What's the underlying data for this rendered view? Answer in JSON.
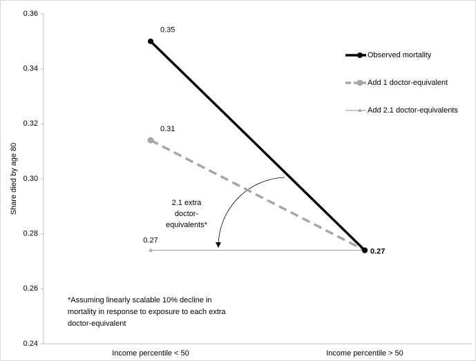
{
  "chart_data": {
    "type": "line",
    "y_label": "Share died by age 80",
    "categories": [
      "Income percentile < 50",
      "Income percentile > 50"
    ],
    "series": [
      {
        "name": "Observed mortality",
        "color": "#000000",
        "style": "solid",
        "marker": "circle",
        "values": [
          0.35,
          0.274
        ],
        "value_labels": [
          "0.35",
          "0.27"
        ]
      },
      {
        "name": "Add 1 doctor-equivalent",
        "color": "#a6a6a6",
        "style": "dashed",
        "marker": "circle",
        "values": [
          0.314,
          0.274
        ],
        "value_labels": [
          "0.31",
          null
        ]
      },
      {
        "name": "Add 2.1 doctor-equivalents",
        "color": "#a6a6a6",
        "style": "thin",
        "marker": "triangle",
        "values": [
          0.274,
          0.274
        ],
        "value_labels": [
          "0.27",
          null
        ]
      }
    ],
    "ylim": [
      0.24,
      0.36
    ],
    "yticks": [
      0.24,
      0.26,
      0.28,
      {
        "value": 0.3,
        "label": "0.30"
      },
      0.32,
      0.34,
      0.36
    ],
    "grid": false,
    "legend": "upper right",
    "annotation_lines": [
      "2.1 extra",
      "doctor-",
      "equivalents*"
    ],
    "footnote_lines": [
      "*Assuming linearly scalable 10% decline in",
      "mortality in response to exposure to each extra",
      "doctor-equivalent"
    ]
  }
}
